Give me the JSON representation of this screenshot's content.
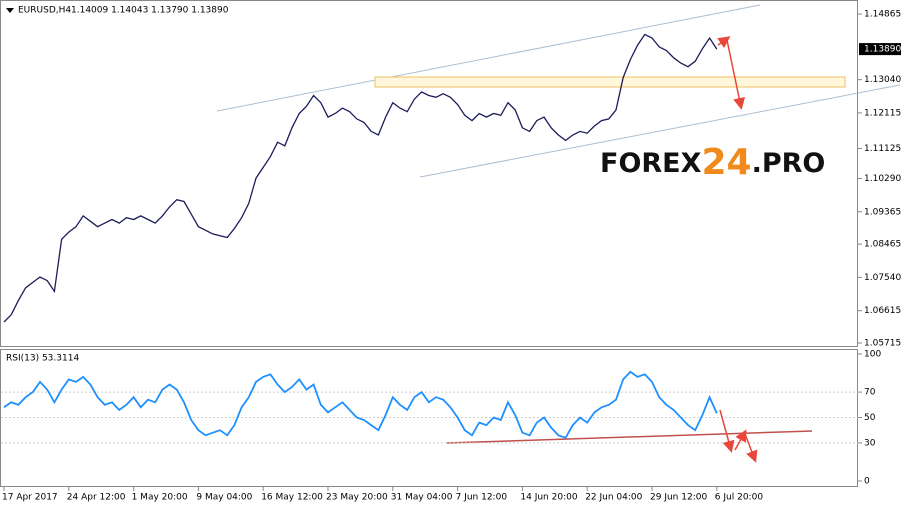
{
  "chart_data": [
    {
      "type": "line",
      "title": "EURUSD,H4",
      "subtitle": "1.14009 1.14043 1.13790 1.13890",
      "categories": [
        "17 Apr 2017",
        null,
        null,
        null,
        null,
        null,
        null,
        null,
        null,
        "24 Apr 12:00",
        null,
        null,
        null,
        null,
        null,
        null,
        null,
        null,
        "1 May 20:00",
        null,
        null,
        null,
        null,
        null,
        null,
        null,
        null,
        "9 May 04:00",
        null,
        null,
        null,
        null,
        null,
        null,
        null,
        null,
        "16 May 12:00",
        null,
        null,
        null,
        null,
        null,
        null,
        null,
        null,
        "23 May 20:00",
        null,
        null,
        null,
        null,
        null,
        null,
        null,
        null,
        "31 May 04:00",
        null,
        null,
        null,
        null,
        null,
        null,
        null,
        null,
        "7 Jun 12:00",
        null,
        null,
        null,
        null,
        null,
        null,
        null,
        null,
        "14 Jun 20:00",
        null,
        null,
        null,
        null,
        null,
        null,
        null,
        null,
        "22 Jun 04:00",
        null,
        null,
        null,
        null,
        null,
        null,
        null,
        null,
        "29 Jun 12:00",
        null,
        null,
        null,
        null,
        null,
        null,
        null,
        null,
        "6 Jul 20:00"
      ],
      "series": [
        {
          "name": "EURUSD",
          "color": "#1c1c5a",
          "values": [
            1.063,
            1.065,
            1.069,
            1.0725,
            1.074,
            1.0755,
            1.0745,
            1.0715,
            1.086,
            1.088,
            1.0895,
            1.0925,
            1.091,
            1.0895,
            1.0905,
            1.0915,
            1.0905,
            1.092,
            1.0915,
            1.0925,
            1.0915,
            1.0905,
            1.0925,
            1.095,
            1.097,
            1.0965,
            1.093,
            1.0895,
            1.0885,
            1.0875,
            1.087,
            1.0865,
            1.089,
            1.092,
            1.096,
            1.103,
            1.106,
            1.109,
            1.113,
            1.112,
            1.117,
            1.121,
            1.123,
            1.126,
            1.124,
            1.12,
            1.121,
            1.1225,
            1.1215,
            1.1195,
            1.1185,
            1.116,
            1.115,
            1.12,
            1.124,
            1.1225,
            1.1215,
            1.125,
            1.127,
            1.126,
            1.1255,
            1.1265,
            1.1255,
            1.1235,
            1.1205,
            1.119,
            1.121,
            1.12,
            1.121,
            1.1205,
            1.124,
            1.122,
            1.117,
            1.116,
            1.119,
            1.12,
            1.117,
            1.115,
            1.1135,
            1.115,
            1.116,
            1.1155,
            1.1175,
            1.119,
            1.1195,
            1.122,
            1.131,
            1.136,
            1.14,
            1.143,
            1.142,
            1.1395,
            1.1385,
            1.1365,
            1.135,
            1.134,
            1.1355,
            1.139,
            1.142,
            1.1389
          ]
        }
      ],
      "current_price": {
        "value": 1.1389,
        "label": "1.13890"
      },
      "ylim": [
        1.05632,
        1.15228
      ],
      "yticks": [
        {
          "value": 1.14865,
          "label": "1.14865"
        },
        {
          "value": 1.1304,
          "label": "1.13040"
        },
        {
          "value": 1.12115,
          "label": "1.12115"
        },
        {
          "value": 1.11125,
          "label": "1.11125"
        },
        {
          "value": 1.1029,
          "label": "1.10290"
        },
        {
          "value": 1.09365,
          "label": "1.09365"
        },
        {
          "value": 1.08465,
          "label": "1.08465"
        },
        {
          "value": 1.0754,
          "label": "1.07540"
        },
        {
          "value": 1.06615,
          "label": "1.06615"
        },
        {
          "value": 1.05715,
          "label": "1.05715"
        }
      ],
      "watermark": [
        "FOREX",
        "24",
        ".PRO"
      ]
    },
    {
      "type": "line",
      "title": "RSI(13) 53.3114",
      "series": [
        {
          "name": "RSI(13)",
          "color": "#1e90ff",
          "values": [
            58,
            62,
            60,
            66,
            70,
            78,
            72,
            62,
            72,
            80,
            78,
            82,
            76,
            66,
            60,
            62,
            56,
            60,
            66,
            58,
            64,
            62,
            72,
            76,
            72,
            62,
            48,
            40,
            36,
            38,
            40,
            36,
            44,
            58,
            66,
            78,
            82,
            84,
            76,
            70,
            74,
            80,
            72,
            76,
            60,
            54,
            58,
            62,
            56,
            50,
            48,
            44,
            40,
            52,
            66,
            60,
            56,
            66,
            70,
            62,
            66,
            64,
            58,
            50,
            40,
            36,
            46,
            44,
            50,
            48,
            62,
            52,
            38,
            36,
            46,
            50,
            42,
            36,
            34,
            44,
            50,
            46,
            54,
            58,
            60,
            64,
            80,
            86,
            82,
            84,
            78,
            66,
            60,
            56,
            50,
            44,
            40,
            52,
            66,
            53.3114
          ]
        }
      ],
      "ylim": [
        0,
        100
      ],
      "yticks": [
        100,
        70,
        50,
        30,
        0
      ]
    }
  ]
}
